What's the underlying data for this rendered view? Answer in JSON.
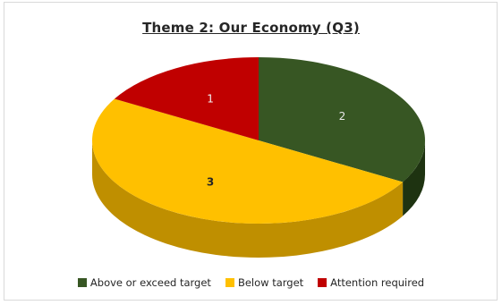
{
  "chart_data": {
    "type": "pie",
    "title": "Theme 2: Our Economy (Q3)",
    "style": "3d",
    "categories": [
      "Above or exceed target",
      "Below target",
      "Attention required"
    ],
    "values": [
      2,
      3,
      1
    ],
    "colors": [
      "#375623",
      "#ffc000",
      "#c00000"
    ],
    "side_colors": [
      "#1e3311",
      "#bf8f00",
      "#7f0000"
    ],
    "label_colors": [
      "#e8e8e8",
      "#262626",
      "#f2f2f2"
    ],
    "legend_position": "bottom"
  }
}
